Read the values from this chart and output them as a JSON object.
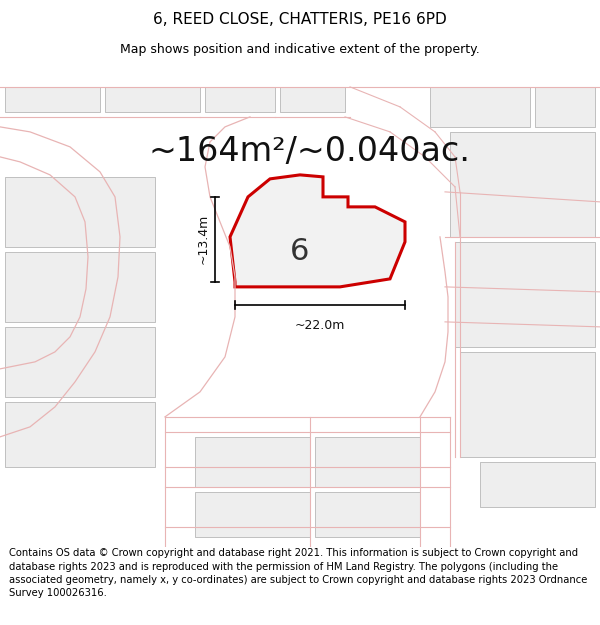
{
  "title": "6, REED CLOSE, CHATTERIS, PE16 6PD",
  "subtitle": "Map shows position and indicative extent of the property.",
  "area_label": "~164m²/~0.040ac.",
  "plot_number": "6",
  "dim_width": "~22.0m",
  "dim_height": "~13.4m",
  "footer": "Contains OS data © Crown copyright and database right 2021. This information is subject to Crown copyright and database rights 2023 and is reproduced with the permission of HM Land Registry. The polygons (including the associated geometry, namely x, y co-ordinates) are subject to Crown copyright and database rights 2023 Ordnance Survey 100026316.",
  "bg_color": "#ffffff",
  "map_bg": "#ffffff",
  "plot_fill": "#f2f2f2",
  "plot_edge": "#cc0000",
  "line_color": "#e8b4b4",
  "block_fill": "#eeeeee",
  "block_edge": "#aaaaaa",
  "title_fontsize": 11,
  "subtitle_fontsize": 9,
  "area_fontsize": 24,
  "footer_fontsize": 7.2,
  "dim_fontsize": 9
}
